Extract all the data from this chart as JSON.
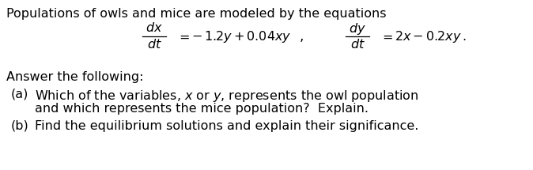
{
  "line1": "Populations of owls and mice are modeled by the equations",
  "answer_label": "Answer the following:",
  "part_a_label": "(a)",
  "part_a_line1": "Which of the variables, $x$ or $y$, represents the owl population",
  "part_a_line2": "and which represents the mice population?  Explain.",
  "part_b_label": "(b)",
  "part_b_text": "Find the equilibrium solutions and explain their significance.",
  "bg_color": "#ffffff",
  "text_color": "#000000",
  "font_size": 11.5,
  "eq_left": "$\\dfrac{dx}{dt}$",
  "eq_left_rhs": "$= -\\,1.2y + 0.04xy$",
  "eq_comma": "$,$",
  "eq_right": "$\\dfrac{dy}{dt}$",
  "eq_right_rhs": "$= 2x - 0.2xy\\,.$"
}
